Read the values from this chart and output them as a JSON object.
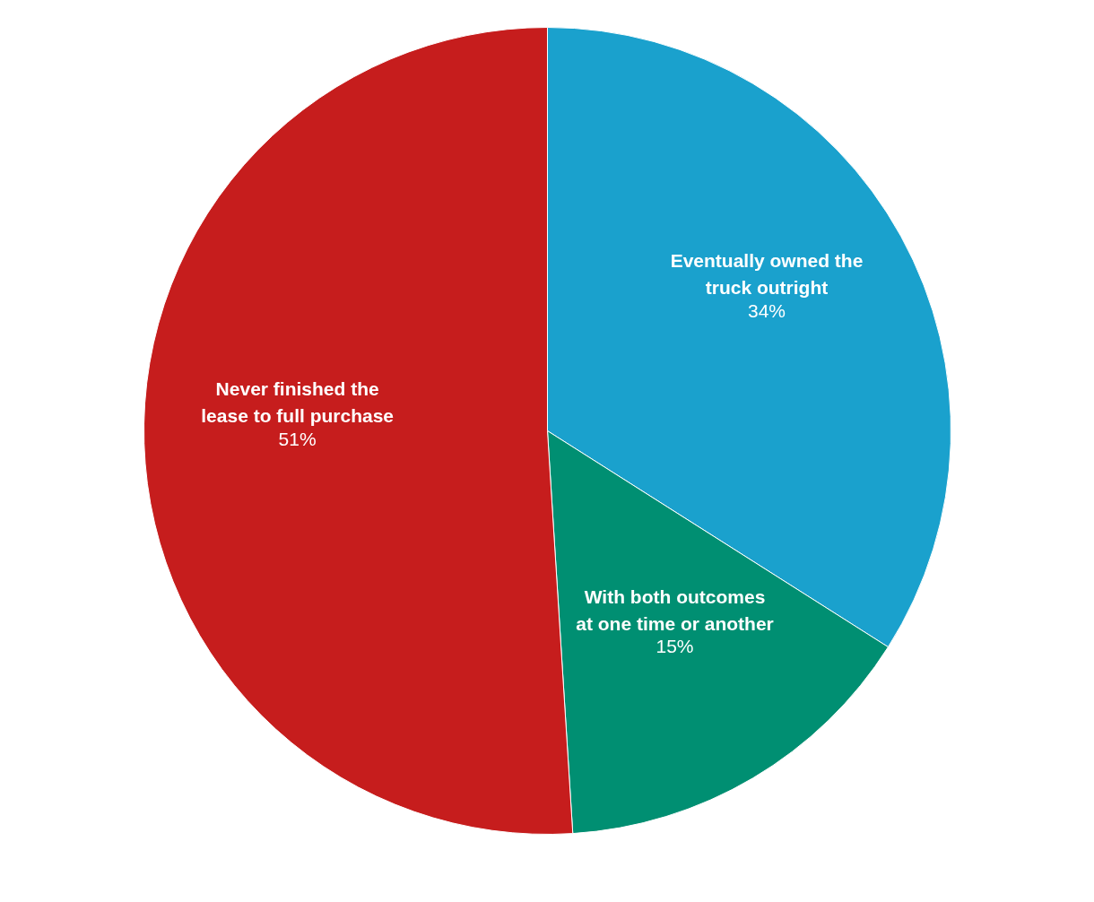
{
  "chart_data": {
    "type": "pie",
    "categories": [
      "Eventually owned the\ntruck outright",
      "With both outcomes\nat one time or another",
      "Never finished the\nlease to full purchase"
    ],
    "values": [
      34,
      15,
      51
    ],
    "colors": [
      "#1aa1cd",
      "#008f72",
      "#c61d1d"
    ],
    "value_labels": [
      "34%",
      "15%",
      "51%"
    ]
  }
}
